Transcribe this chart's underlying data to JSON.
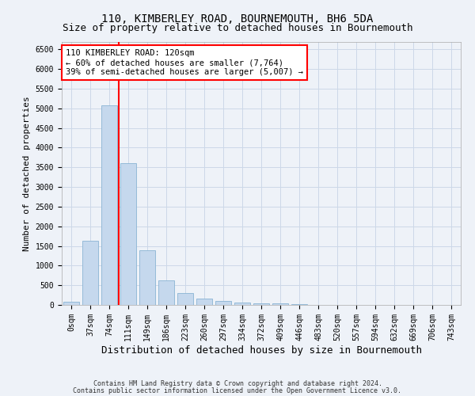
{
  "title": "110, KIMBERLEY ROAD, BOURNEMOUTH, BH6 5DA",
  "subtitle": "Size of property relative to detached houses in Bournemouth",
  "xlabel": "Distribution of detached houses by size in Bournemouth",
  "ylabel": "Number of detached properties",
  "bar_labels": [
    "0sqm",
    "37sqm",
    "74sqm",
    "111sqm",
    "149sqm",
    "186sqm",
    "223sqm",
    "260sqm",
    "297sqm",
    "334sqm",
    "372sqm",
    "409sqm",
    "446sqm",
    "483sqm",
    "520sqm",
    "557sqm",
    "594sqm",
    "632sqm",
    "669sqm",
    "706sqm",
    "743sqm"
  ],
  "bar_values": [
    75,
    1625,
    5075,
    3600,
    1400,
    620,
    310,
    155,
    100,
    65,
    40,
    35,
    30,
    0,
    0,
    0,
    0,
    0,
    0,
    0,
    0
  ],
  "bar_color": "#c5d8ed",
  "bar_edgecolor": "#8ab4d4",
  "ylim": [
    0,
    6700
  ],
  "yticks": [
    0,
    500,
    1000,
    1500,
    2000,
    2500,
    3000,
    3500,
    4000,
    4500,
    5000,
    5500,
    6000,
    6500
  ],
  "redline_index": 3,
  "annotation_text": "110 KIMBERLEY ROAD: 120sqm\n← 60% of detached houses are smaller (7,764)\n39% of semi-detached houses are larger (5,007) →",
  "annotation_box_color": "white",
  "annotation_box_edgecolor": "red",
  "footnote1": "Contains HM Land Registry data © Crown copyright and database right 2024.",
  "footnote2": "Contains public sector information licensed under the Open Government Licence v3.0.",
  "grid_color": "#ccd8e8",
  "bg_color": "#eef2f8",
  "title_fontsize": 10,
  "subtitle_fontsize": 9,
  "xlabel_fontsize": 9,
  "ylabel_fontsize": 8,
  "tick_fontsize": 7,
  "annotation_fontsize": 7.5,
  "footnote_fontsize": 6
}
